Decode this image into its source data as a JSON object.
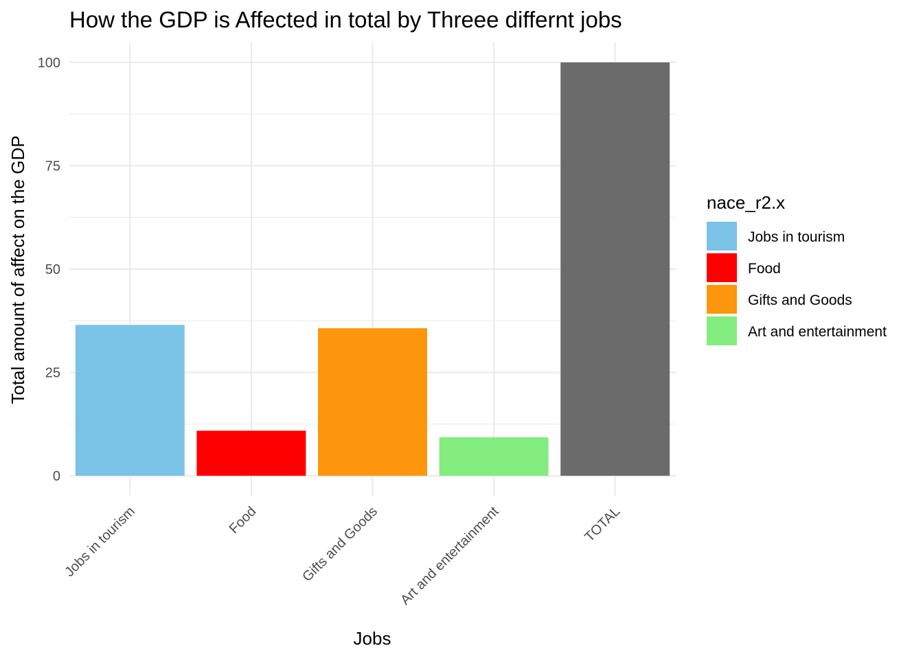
{
  "chart_data": {
    "type": "bar",
    "title": "How the GDP is Affected in total by Threee differnt jobs",
    "xlabel": "Jobs",
    "ylabel": "Total amount of affect on the GDP",
    "categories": [
      "Jobs in tourism",
      "Food",
      "Gifts and Goods",
      "Art and entertainment",
      "TOTAL"
    ],
    "values": [
      36.5,
      10.9,
      35.7,
      9.3,
      100
    ],
    "bar_colors": [
      "#7AC3E6",
      "#FF0000",
      "#FD960C",
      "#82EC7E",
      "#6B6B6B"
    ],
    "ylim": [
      -4.8,
      104.8
    ],
    "yticks": [
      0,
      25,
      50,
      75,
      100
    ],
    "grid": true,
    "legend": {
      "title": "nace_r2.x",
      "position": "right",
      "entries": [
        {
          "label": "Jobs in tourism",
          "color": "#7AC3E6"
        },
        {
          "label": "Food",
          "color": "#FF0000"
        },
        {
          "label": "Gifts and Goods",
          "color": "#FD960C"
        },
        {
          "label": "Art and entertainment",
          "color": "#82EC7E"
        }
      ]
    }
  }
}
